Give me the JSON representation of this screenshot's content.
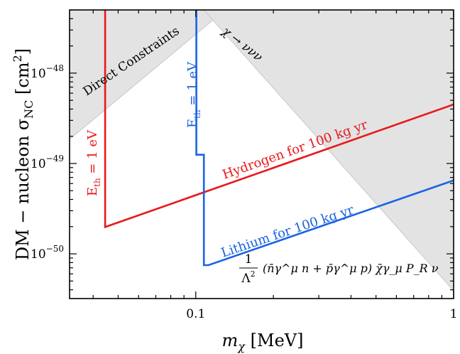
{
  "chart_data": {
    "type": "line",
    "xscale": "log",
    "yscale": "log",
    "xlim": [
      0.0324,
      1.0
    ],
    "ylim": [
      3.2e-51,
      5e-48
    ],
    "x_ticks": [
      {
        "value": 0.1,
        "label": "0.1"
      },
      {
        "value": 1,
        "label": "1"
      }
    ],
    "y_ticks": [
      {
        "value": 1e-50,
        "base": "10",
        "exp": "−50"
      },
      {
        "value": 1e-49,
        "base": "10",
        "exp": "−49"
      },
      {
        "value": 1e-48,
        "base": "10",
        "exp": "−48"
      }
    ],
    "xlabel": {
      "main": "m",
      "sub": "χ",
      "unit": " [MeV]"
    },
    "ylabel": {
      "main": "DM − nucleon σ",
      "sub": "NC",
      "unit": " [cm",
      "sup": "2",
      "close": "]"
    },
    "colors": {
      "hydrogen": "#e8191b",
      "lithium": "#1a63e3",
      "shade": "#e3e3e3",
      "shade_edge": "#c8c8c8"
    },
    "series": [
      {
        "name": "Hydrogen for 100 kg yr",
        "color": "#e8191b",
        "points": [
          [
            0.0445,
            5e-48
          ],
          [
            0.0445,
            1.98e-50
          ],
          [
            1.0,
            4.5e-49
          ]
        ]
      },
      {
        "name": "Lithium for 100 kg yr",
        "color": "#1a63e3",
        "points": [
          [
            0.1005,
            5e-48
          ],
          [
            0.1005,
            1.25e-49
          ],
          [
            0.1075,
            1.25e-49
          ],
          [
            0.1075,
            7.5e-51
          ],
          [
            0.112,
            7.5e-51
          ],
          [
            1.0,
            6.5e-50
          ]
        ]
      }
    ],
    "regions": [
      {
        "name": "Direct Constraints",
        "points": [
          [
            0.0324,
            1.85e-49
          ],
          [
            0.0324,
            5e-48
          ],
          [
            0.13,
            5e-48
          ]
        ]
      },
      {
        "name": "χ → ννν",
        "points": [
          [
            0.1075,
            5e-48
          ],
          [
            1.0,
            5e-48
          ],
          [
            1.0,
            3.9e-51
          ]
        ]
      }
    ],
    "annotations": {
      "direct_constraints": "Direct Constraints",
      "decay": "χ → ννν",
      "hydrogen": "Hydrogen for 100 kg yr",
      "lithium": "Lithium for 100 kg yr",
      "eth_red": {
        "base": "E",
        "sub": "th",
        "rest": " = 1 eV"
      },
      "eth_blue": {
        "base": "E",
        "sub": "th",
        "rest": " = 1 eV"
      },
      "operator": {
        "numerator": "1",
        "denominator": "Λ",
        "denominator_sup": "2",
        "expression": "(n̄γ^μ n + p̄γ^μ p) χ̄γ_μ P_R ν"
      }
    }
  }
}
